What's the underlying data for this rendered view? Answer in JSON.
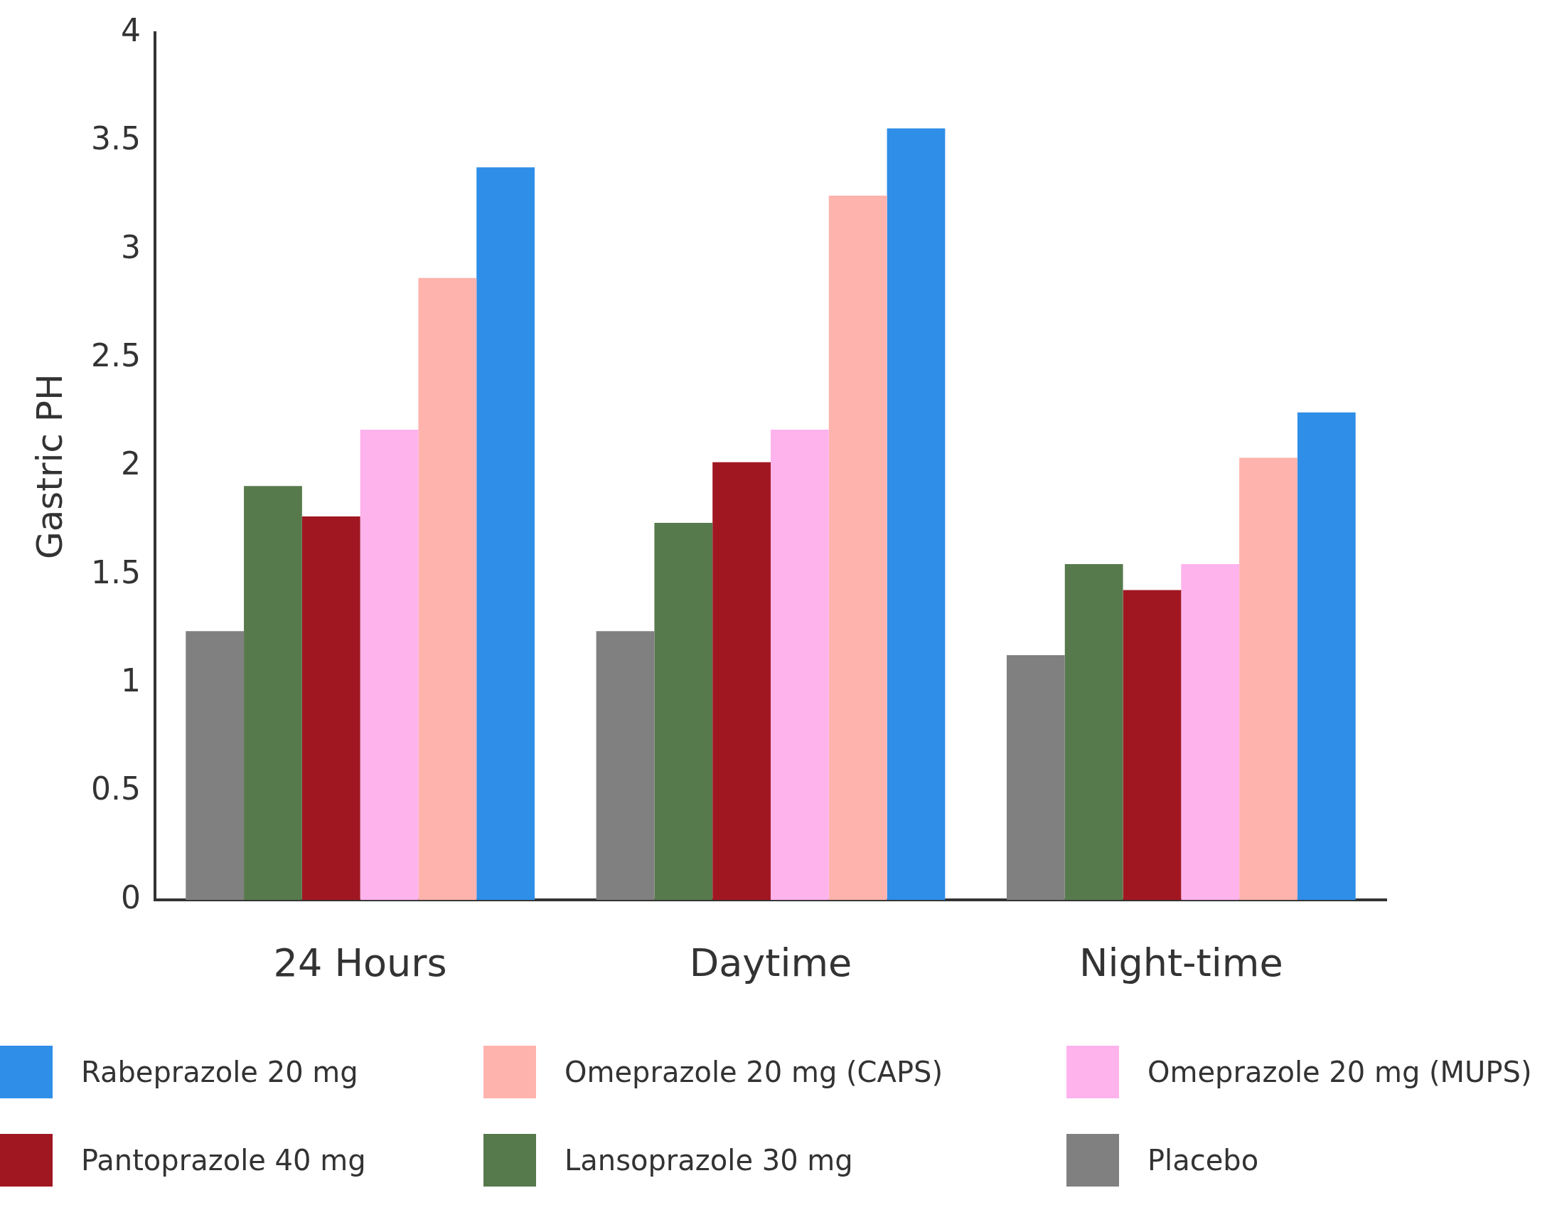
{
  "chart_data": {
    "type": "bar",
    "ylabel": "Gastric PH",
    "categories": [
      "24 Hours",
      "Daytime",
      "Night-time"
    ],
    "series": [
      {
        "name": "Placebo",
        "color": "#808080",
        "values": [
          1.24,
          1.24,
          1.13
        ]
      },
      {
        "name": "Lansoprazole 30 mg",
        "color": "#567a4c",
        "values": [
          1.91,
          1.74,
          1.55
        ]
      },
      {
        "name": "Pantoprazole 40 mg",
        "color": "#a01722",
        "values": [
          1.77,
          2.02,
          1.43
        ]
      },
      {
        "name": "Omeprazole 20 mg (MUPS)",
        "color": "#ffb3ec",
        "values": [
          2.17,
          2.17,
          1.55
        ]
      },
      {
        "name": "Omeprazole 20 mg (CAPS)",
        "color": "#ffb3ad",
        "values": [
          2.87,
          3.25,
          2.04
        ]
      },
      {
        "name": "Rabeprazole 20 mg",
        "color": "#2f8ee8",
        "values": [
          3.38,
          3.56,
          2.25
        ]
      }
    ],
    "ylim": [
      0,
      4
    ],
    "yticks": [
      0,
      0.5,
      1,
      1.5,
      2,
      2.5,
      3,
      3.5,
      4
    ],
    "grid": false,
    "legend": "bottom"
  }
}
